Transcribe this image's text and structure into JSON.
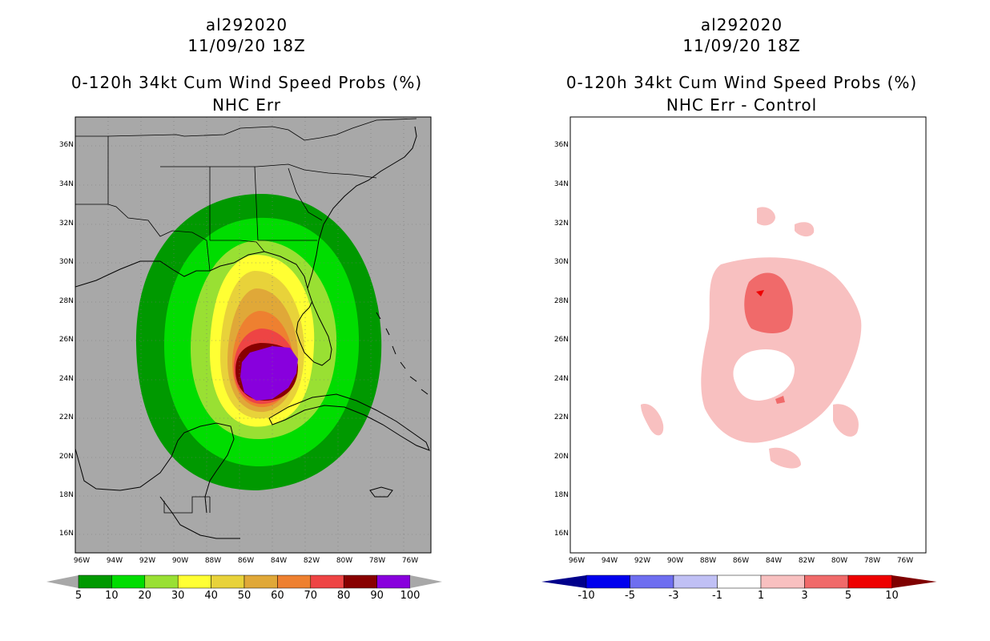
{
  "left_panel": {
    "storm_id": "al292020",
    "datetime": "11/09/20 18Z",
    "product": "0-120h 34kt Cum Wind Speed Probs (%)",
    "subtitle": "NHC Err",
    "colorbar": {
      "labels": [
        "5",
        "10",
        "20",
        "30",
        "40",
        "50",
        "60",
        "70",
        "80",
        "90",
        "100"
      ],
      "colors": [
        "#009900",
        "#00dd00",
        "#99e033",
        "#ffff33",
        "#e8d23a",
        "#e0a838",
        "#ee8030",
        "#ee4444",
        "#880000",
        "#8800dd"
      ]
    }
  },
  "right_panel": {
    "storm_id": "al292020",
    "datetime": "11/09/20 18Z",
    "product": "0-120h 34kt Cum Wind Speed Probs (%)",
    "subtitle": "NHC Err - Control",
    "colorbar": {
      "labels": [
        "-10",
        "-5",
        "-3",
        "-1",
        "1",
        "3",
        "5",
        "10"
      ],
      "colors": [
        "#00008b",
        "#0000ee",
        "#6e6ef0",
        "#c0c0f5",
        "#ffffff",
        "#f8c0c0",
        "#f06a6a",
        "#ee0000",
        "#7f0000"
      ]
    }
  },
  "map": {
    "lat_labels": [
      "36N",
      "34N",
      "32N",
      "30N",
      "28N",
      "26N",
      "24N",
      "22N",
      "20N",
      "18N",
      "16N"
    ],
    "lon_labels": [
      "96W",
      "94W",
      "92W",
      "90W",
      "88W",
      "86W",
      "84W",
      "82W",
      "80W",
      "78W",
      "76W"
    ]
  }
}
